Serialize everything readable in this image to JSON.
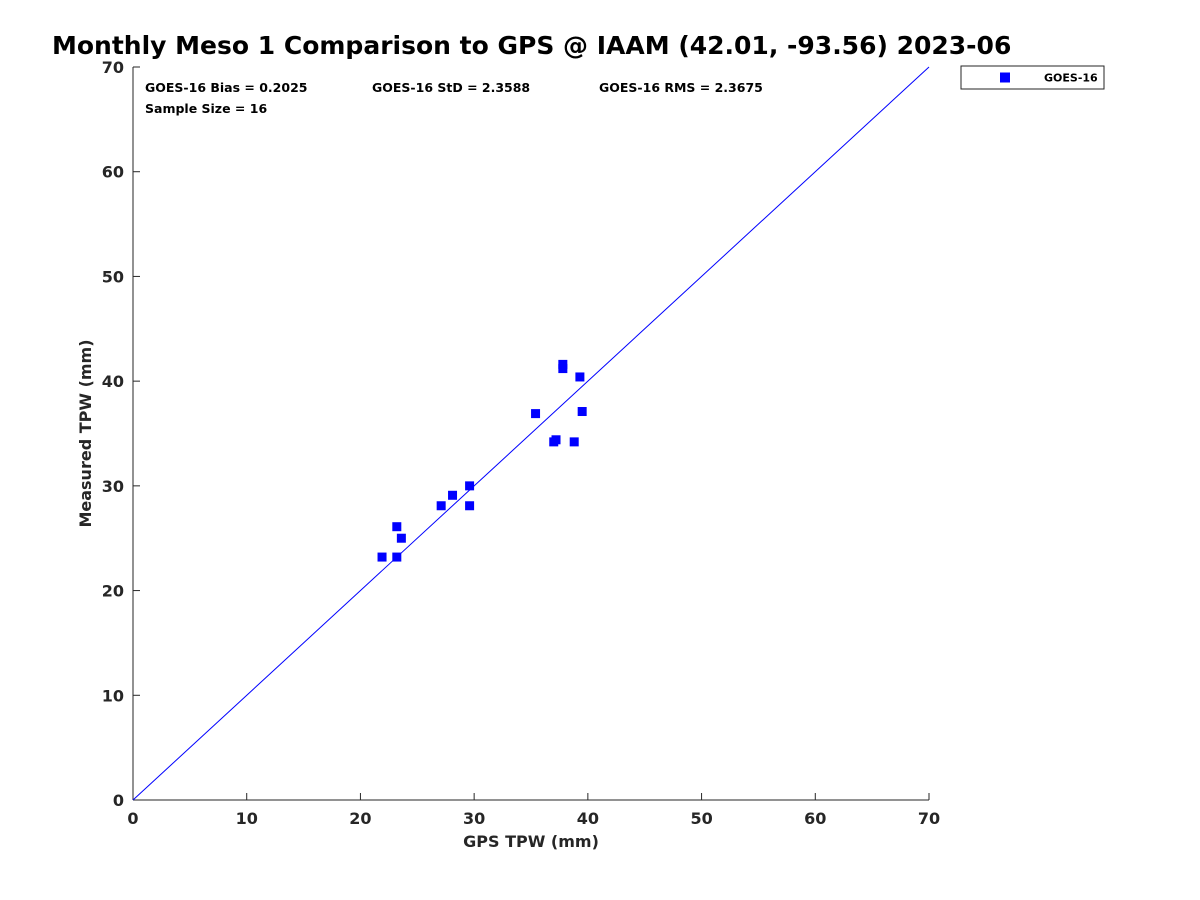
{
  "chart_data": {
    "type": "scatter",
    "title": "Monthly Meso 1 Comparison to GPS @ IAAM (42.01, -93.56) 2023-06",
    "xlabel": "GPS TPW (mm)",
    "ylabel": "Measured TPW (mm)",
    "xlim": [
      0,
      70
    ],
    "ylim": [
      0,
      70
    ],
    "xticks": [
      "0",
      "10",
      "20",
      "30",
      "40",
      "50",
      "60",
      "70"
    ],
    "yticks": [
      "0",
      "10",
      "20",
      "30",
      "40",
      "50",
      "60",
      "70"
    ],
    "stats": {
      "bias": "GOES-16 Bias = 0.2025",
      "std": "GOES-16 StD = 2.3588",
      "rms": "GOES-16 RMS = 2.3675",
      "sample": "Sample Size = 16"
    },
    "reference_line": {
      "label": "1:1",
      "x": [
        0,
        70
      ],
      "y": [
        0,
        70
      ],
      "color": "#0000ff"
    },
    "legend": {
      "position": "top-right-outside",
      "entries": [
        "GOES-16"
      ]
    },
    "series": [
      {
        "name": "GOES-16",
        "color": "#0000ff",
        "marker": "square",
        "points": [
          {
            "x": 21.9,
            "y": 23.2
          },
          {
            "x": 23.2,
            "y": 23.2
          },
          {
            "x": 23.2,
            "y": 26.1
          },
          {
            "x": 23.6,
            "y": 25.0
          },
          {
            "x": 27.1,
            "y": 28.1
          },
          {
            "x": 28.1,
            "y": 29.1
          },
          {
            "x": 29.6,
            "y": 28.1
          },
          {
            "x": 29.6,
            "y": 30.0
          },
          {
            "x": 35.4,
            "y": 36.9
          },
          {
            "x": 37.0,
            "y": 34.2
          },
          {
            "x": 37.2,
            "y": 34.4
          },
          {
            "x": 37.8,
            "y": 41.2
          },
          {
            "x": 37.8,
            "y": 41.6
          },
          {
            "x": 38.8,
            "y": 34.2
          },
          {
            "x": 39.3,
            "y": 40.4
          },
          {
            "x": 39.5,
            "y": 37.1
          }
        ]
      }
    ]
  }
}
